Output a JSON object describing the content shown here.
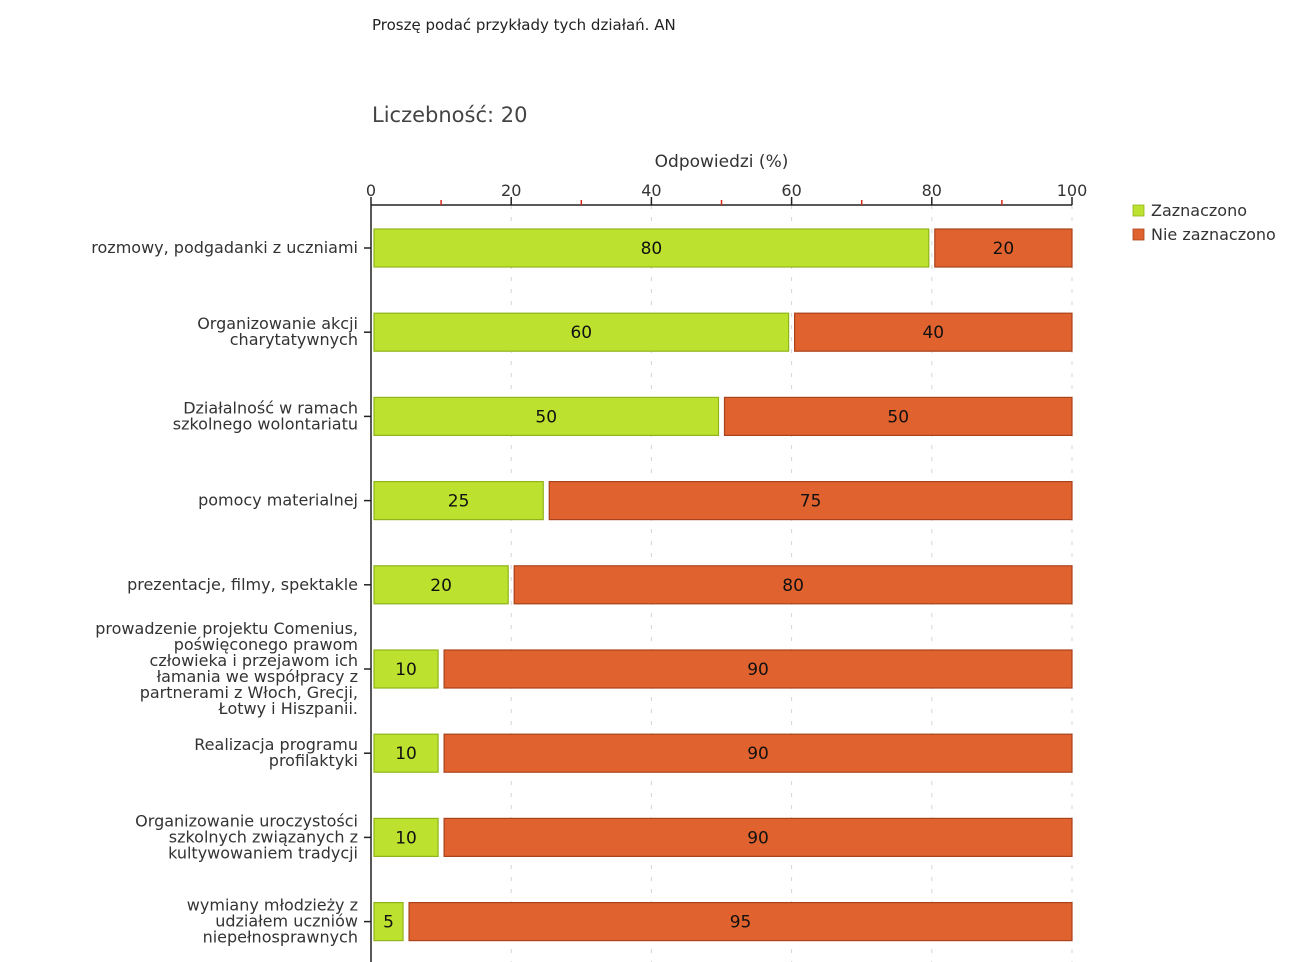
{
  "chart_data": {
    "type": "bar",
    "orientation": "horizontal",
    "stacked": true,
    "title": "Proszę podać przykłady tych działań. AN",
    "subtitle": "Liczebność: 20",
    "xlabel": "Odpowiedzi (%)",
    "xlim": [
      0,
      100
    ],
    "xticks": [
      0,
      20,
      40,
      60,
      80,
      100
    ],
    "grid": true,
    "legend_position": "top-right",
    "categories": [
      [
        "rozmowy, podgadanki z uczniami"
      ],
      [
        "Organizowanie akcji",
        "charytatywnych"
      ],
      [
        "Działalność w ramach",
        "szkolnego wolontariatu"
      ],
      [
        "pomocy materialnej"
      ],
      [
        "prezentacje, filmy, spektakle"
      ],
      [
        "prowadzenie projektu Comenius,",
        "poświęconego prawom",
        "człowieka i przejawom ich",
        "łamania we współpracy z",
        "partnerami z Włoch, Grecji,",
        "Łotwy i Hiszpanii."
      ],
      [
        "Realizacja programu",
        "profilaktyki"
      ],
      [
        "Organizowanie uroczystości",
        "szkolnych związanych z",
        "kultywowaniem tradycji"
      ],
      [
        "wymiany młodzieży z",
        "udziałem uczniów",
        "niepełnosprawnych"
      ]
    ],
    "series": [
      {
        "name": "Zaznaczono",
        "color": "#bde12f",
        "border": "#8fb51a",
        "values": [
          80,
          60,
          50,
          25,
          20,
          10,
          10,
          10,
          5
        ]
      },
      {
        "name": "Nie zaznaczono",
        "color": "#e0622e",
        "border": "#a9431b",
        "values": [
          20,
          40,
          50,
          75,
          80,
          90,
          90,
          90,
          95
        ]
      }
    ]
  }
}
